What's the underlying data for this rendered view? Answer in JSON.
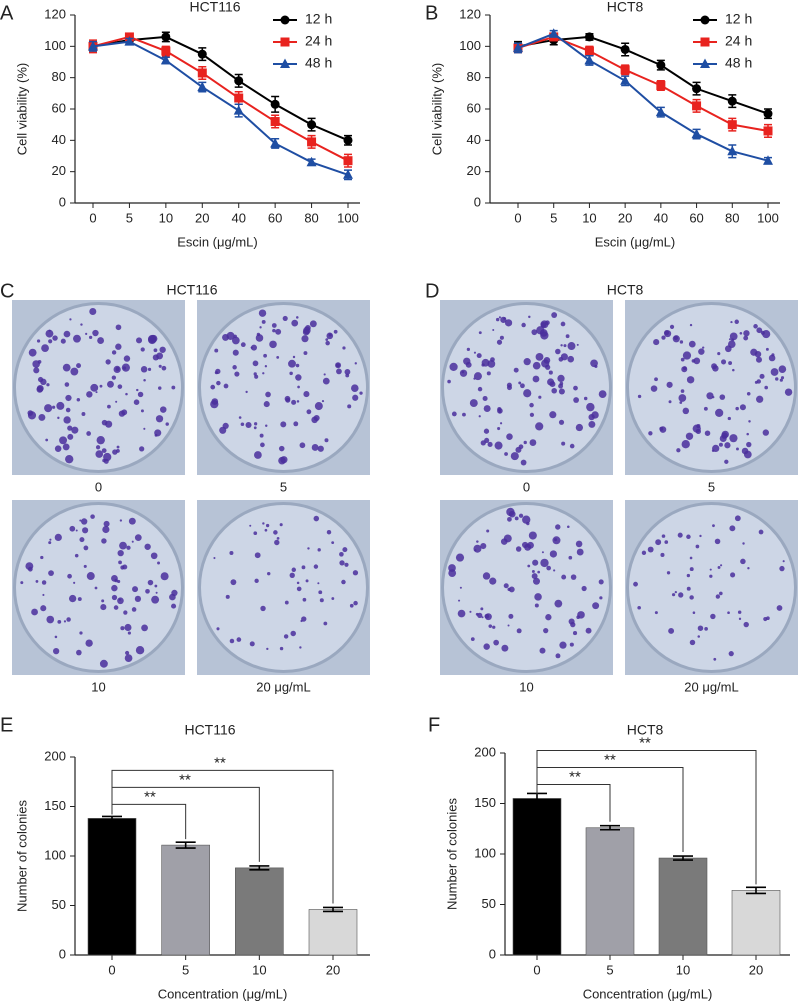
{
  "chart_data": [
    {
      "type": "line",
      "panel": "A",
      "title": "HCT116",
      "xlabel": "Escin (μg/mL)",
      "ylabel": "Cell viability (%)",
      "categories": [
        "0",
        "5",
        "10",
        "20",
        "40",
        "60",
        "80",
        "100"
      ],
      "ylim": [
        0,
        120
      ],
      "yticks": [
        0,
        20,
        40,
        60,
        80,
        100,
        120
      ],
      "legend": "upper right",
      "series": [
        {
          "name": "12 h",
          "color": "#000000",
          "marker": "circle",
          "values": [
            100,
            104,
            106,
            95,
            78,
            63,
            50,
            40
          ],
          "errors": [
            3,
            2,
            3,
            4,
            4,
            5,
            4,
            3
          ]
        },
        {
          "name": "24 h",
          "color": "#e8231f",
          "marker": "square",
          "values": [
            100,
            106,
            97,
            83,
            67,
            52,
            39,
            27
          ],
          "errors": [
            4,
            2,
            3,
            4,
            4,
            4,
            4,
            4
          ]
        },
        {
          "name": "48 h",
          "color": "#1f4ea3",
          "marker": "triangle",
          "values": [
            100,
            103,
            91,
            74,
            59,
            38,
            26,
            18
          ],
          "errors": [
            3,
            2,
            2,
            3,
            4,
            3,
            2,
            3
          ]
        }
      ]
    },
    {
      "type": "line",
      "panel": "B",
      "title": "HCT8",
      "xlabel": "Escin (μg/mL)",
      "ylabel": "Cell viability (%)",
      "categories": [
        "0",
        "5",
        "10",
        "20",
        "40",
        "60",
        "80",
        "100"
      ],
      "ylim": [
        0,
        120
      ],
      "yticks": [
        0,
        20,
        40,
        60,
        80,
        100,
        120
      ],
      "legend": "upper right",
      "series": [
        {
          "name": "12 h",
          "color": "#000000",
          "marker": "circle",
          "values": [
            100,
            104,
            106,
            98,
            88,
            73,
            65,
            57
          ],
          "errors": [
            3,
            3,
            2,
            4,
            3,
            4,
            4,
            3
          ]
        },
        {
          "name": "24 h",
          "color": "#e8231f",
          "marker": "square",
          "values": [
            99,
            106,
            97,
            85,
            75,
            62,
            50,
            46
          ],
          "errors": [
            3,
            2,
            3,
            3,
            3,
            4,
            4,
            4
          ]
        },
        {
          "name": "48 h",
          "color": "#1f4ea3",
          "marker": "triangle",
          "values": [
            99,
            108,
            91,
            78,
            58,
            44,
            33,
            27
          ],
          "errors": [
            3,
            2,
            3,
            3,
            3,
            3,
            4,
            2
          ]
        }
      ]
    },
    {
      "type": "bar",
      "panel": "E",
      "title": "HCT116",
      "xlabel": "Concentration (μg/mL)",
      "ylabel": "Number of colonies",
      "categories": [
        "0",
        "5",
        "10",
        "20"
      ],
      "values": [
        138,
        111,
        88,
        46
      ],
      "errors": [
        2,
        3,
        2,
        2
      ],
      "colors": [
        "#000000",
        "#a0a0a8",
        "#7a7a7a",
        "#d8d8d8"
      ],
      "ylim": [
        0,
        200
      ],
      "yticks": [
        0,
        50,
        100,
        150,
        200
      ],
      "annotations": [
        "**",
        "**",
        "**"
      ]
    },
    {
      "type": "bar",
      "panel": "F",
      "title": "HCT8",
      "xlabel": "Concentration (μg/mL)",
      "ylabel": "Number of colonies",
      "categories": [
        "0",
        "5",
        "10",
        "20"
      ],
      "values": [
        155,
        126,
        96,
        64
      ],
      "errors": [
        5,
        2,
        2,
        3
      ],
      "colors": [
        "#000000",
        "#a0a0a8",
        "#7a7a7a",
        "#d8d8d8"
      ],
      "ylim": [
        0,
        200
      ],
      "yticks": [
        0,
        50,
        100,
        150,
        200
      ],
      "annotations": [
        "**",
        "**",
        "**"
      ]
    }
  ],
  "image_panels": [
    {
      "panel": "C",
      "title": "HCT116",
      "labels": [
        "0",
        "5",
        "10",
        "20 μg/mL"
      ]
    },
    {
      "panel": "D",
      "title": "HCT8",
      "labels": [
        "0",
        "5",
        "10",
        "20 μg/mL"
      ]
    }
  ]
}
